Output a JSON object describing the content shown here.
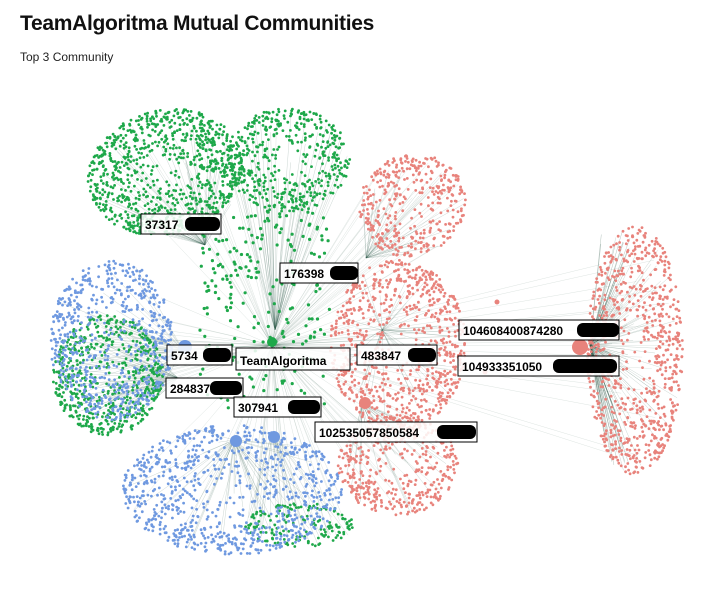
{
  "header": {
    "title": "TeamAlgoritma Mutual Communities",
    "subtitle": "Top 3 Community"
  },
  "colors": {
    "green": "#1ea84a",
    "red": "#e8837c",
    "blue": "#6f99e0",
    "edge": "#2f5a4a",
    "label_border": "#000000",
    "redaction": "#000000"
  },
  "chart_data": {
    "type": "network",
    "title": "TeamAlgoritma Mutual Communities",
    "subtitle": "Top 3 Community",
    "communities": [
      {
        "color": "green"
      },
      {
        "color": "red"
      },
      {
        "color": "blue"
      }
    ],
    "labels": [
      {
        "text": "37317",
        "community": "green",
        "redacted": true
      },
      {
        "text": "176398",
        "community": "green",
        "redacted": true
      },
      {
        "text": "5734",
        "community": "blue",
        "redacted": true
      },
      {
        "text": "TeamAlgoritma",
        "community": "green",
        "redacted": false
      },
      {
        "text": "483847",
        "community": "red",
        "redacted": true
      },
      {
        "text": "284837",
        "community": "green",
        "redacted": true
      },
      {
        "text": "307941",
        "community": "green",
        "redacted": true
      },
      {
        "text": "104608400874280",
        "community": "red",
        "redacted": true
      },
      {
        "text": "104933351050",
        "community": "red",
        "redacted": true
      },
      {
        "text": "102535057850584",
        "community": "red",
        "redacted": true
      }
    ]
  }
}
